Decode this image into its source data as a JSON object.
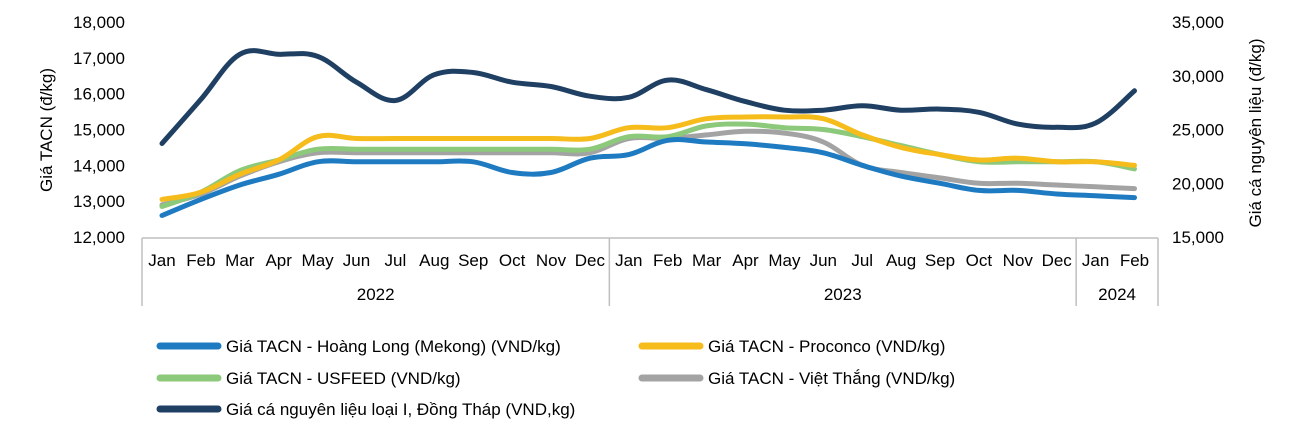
{
  "chart_data": {
    "type": "line",
    "categories": [
      "Jan",
      "Feb",
      "Mar",
      "Apr",
      "May",
      "Jun",
      "Jul",
      "Aug",
      "Sep",
      "Oct",
      "Nov",
      "Dec",
      "Jan",
      "Feb",
      "Mar",
      "Apr",
      "May",
      "Jun",
      "Jul",
      "Aug",
      "Sep",
      "Oct",
      "Nov",
      "Dec",
      "Jan",
      "Feb"
    ],
    "year_groups": [
      {
        "label": "2022",
        "count": 12
      },
      {
        "label": "2023",
        "count": 12
      },
      {
        "label": "2024",
        "count": 2
      }
    ],
    "ylabel": "Giá TACN (đ/kg)",
    "y2label": "Giá cá nguyên liệu (đ/kg)",
    "ylim": [
      12000,
      18000
    ],
    "y2lim": [
      15000,
      35000
    ],
    "yticks": [
      "12,000",
      "13,000",
      "14,000",
      "15,000",
      "16,000",
      "17,000",
      "18,000"
    ],
    "y2ticks": [
      "15,000",
      "20,000",
      "25,000",
      "30,000",
      "35,000"
    ],
    "grid": false,
    "legend_position": "bottom",
    "series": [
      {
        "name": "Giá TACN - Hoàng Long (Mekong) (VND/kg)",
        "axis": "left",
        "color": "#1F7BC1",
        "values": [
          12600,
          13050,
          13450,
          13750,
          14100,
          14100,
          14100,
          14100,
          14100,
          13800,
          13800,
          14200,
          14300,
          14700,
          14650,
          14600,
          14500,
          14350,
          14000,
          13700,
          13500,
          13300,
          13300,
          13200,
          13150,
          13100
        ]
      },
      {
        "name": "Giá TACN - Proconco (VND/kg)",
        "axis": "left",
        "color": "#F5BC1C",
        "values": [
          13050,
          13250,
          13750,
          14150,
          14800,
          14750,
          14750,
          14750,
          14750,
          14750,
          14750,
          14750,
          15050,
          15050,
          15300,
          15350,
          15350,
          15300,
          14850,
          14500,
          14300,
          14150,
          14200,
          14100,
          14100,
          14000
        ]
      },
      {
        "name": "Giá TACN - USFEED (VND/kg)",
        "axis": "left",
        "color": "#8DC97A",
        "values": [
          12850,
          13250,
          13850,
          14150,
          14450,
          14450,
          14450,
          14450,
          14450,
          14450,
          14450,
          14450,
          14800,
          14800,
          15100,
          15150,
          15050,
          15000,
          14800,
          14550,
          14300,
          14100,
          14100,
          14100,
          14100,
          13900
        ]
      },
      {
        "name": "Giá TACN - Việt Thắng (VND/kg)",
        "axis": "left",
        "color": "#A3A3A3",
        "values": [
          12900,
          13200,
          13700,
          14100,
          14350,
          14350,
          14350,
          14350,
          14350,
          14350,
          14350,
          14350,
          14750,
          14750,
          14850,
          14950,
          14900,
          14650,
          14000,
          13800,
          13650,
          13500,
          13500,
          13450,
          13400,
          13350
        ]
      },
      {
        "name": "Giá cá nguyên liệu loại I, Đồng Tháp (VND,kg)",
        "axis": "right",
        "color": "#1F3F63",
        "values": [
          23700,
          27800,
          32000,
          32000,
          31800,
          29400,
          27700,
          30100,
          30300,
          29400,
          29000,
          28100,
          28000,
          29600,
          28700,
          27600,
          26800,
          26800,
          27200,
          26800,
          26900,
          26600,
          25500,
          25200,
          25600,
          28600
        ]
      }
    ]
  }
}
